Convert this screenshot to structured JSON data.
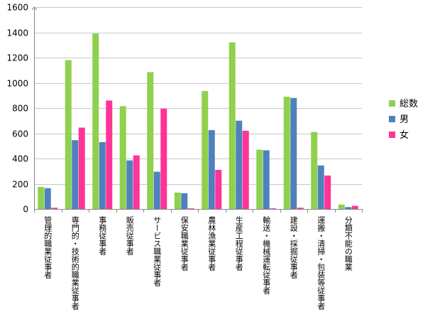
{
  "chart_data": {
    "type": "bar",
    "title": "",
    "xlabel": "",
    "ylabel": "",
    "ylim": [
      0,
      1600
    ],
    "yticks": [
      0,
      200,
      400,
      600,
      800,
      1000,
      1200,
      1400,
      1600
    ],
    "grid": true,
    "legend_position": "right",
    "categories": [
      "管理的職業従事者",
      "専門的・技術的職業従事者",
      "事務従事者",
      "販売従事者",
      "サービス職業従事者",
      "保安職業従事者",
      "農林漁業従事者",
      "生産工程従事者",
      "輸送・機械運転従事者",
      "建設・採掘従事者",
      "運搬・清掃・包装等従事者",
      "分類不能の職業"
    ],
    "series": [
      {
        "name": "総数",
        "color": "#8fd14f",
        "values": [
          175,
          1180,
          1390,
          815,
          1085,
          130,
          935,
          1320,
          470,
          890,
          610,
          35
        ]
      },
      {
        "name": "男",
        "color": "#4f81bd",
        "values": [
          165,
          545,
          530,
          385,
          295,
          125,
          625,
          700,
          465,
          880,
          345,
          15
        ]
      },
      {
        "name": "女",
        "color": "#ff3399",
        "values": [
          10,
          645,
          860,
          425,
          795,
          5,
          310,
          620,
          5,
          10,
          265,
          25
        ]
      }
    ]
  }
}
